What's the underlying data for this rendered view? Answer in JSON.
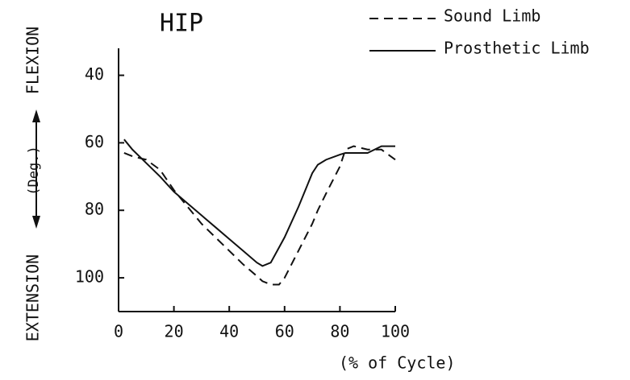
{
  "chart_data": {
    "type": "line",
    "title": "HIP",
    "x_label": "(% of Cycle)",
    "y_annotations": [
      "FLEXION",
      "(Deg.)",
      "EXTENSION"
    ],
    "x": [
      2,
      5,
      10,
      15,
      20,
      25,
      30,
      35,
      40,
      45,
      50,
      52,
      55,
      58,
      60,
      65,
      70,
      72,
      75,
      80,
      82,
      85,
      90,
      95,
      100
    ],
    "series": [
      {
        "name": "Sound Limb",
        "color": "#111111",
        "style": "dashed",
        "values": [
          63,
          64,
          65,
          68,
          74,
          79,
          84,
          88,
          92,
          96,
          99.5,
          101,
          102,
          102,
          100,
          92,
          84,
          80,
          75,
          67,
          62,
          61,
          62,
          62,
          65
        ]
      },
      {
        "name": "Prosthetic Limb",
        "color": "#111111",
        "style": "solid",
        "values": [
          59,
          62,
          66,
          70,
          74.5,
          78,
          81.5,
          85,
          88.5,
          92,
          95.5,
          96.5,
          95.5,
          91,
          88,
          79,
          69,
          66.5,
          65,
          63.5,
          63,
          63,
          63,
          61,
          61
        ]
      }
    ],
    "xlim": [
      0,
      100
    ],
    "xticks": [
      0,
      20,
      40,
      60,
      80,
      100
    ],
    "ylim": [
      110,
      32
    ],
    "yticks": [
      40,
      60,
      80,
      100
    ],
    "grid": false,
    "legend": "top-right"
  }
}
